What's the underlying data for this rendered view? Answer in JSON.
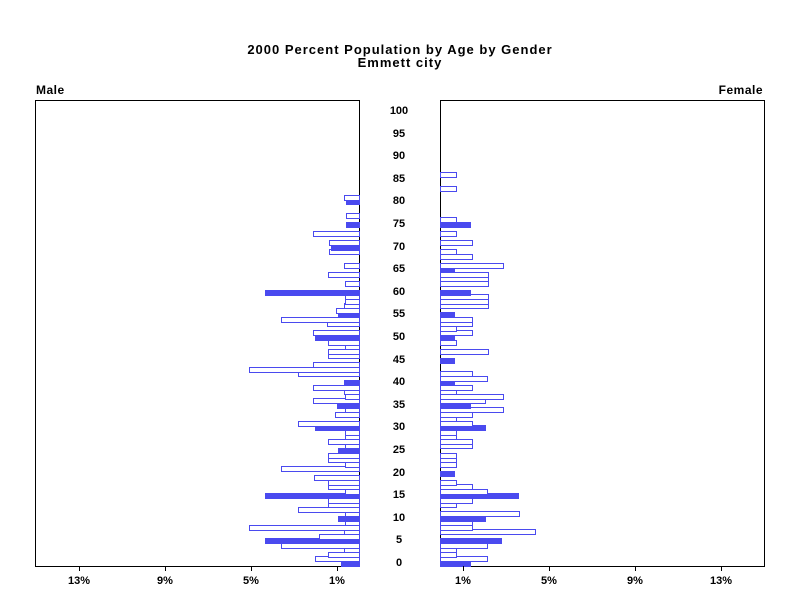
{
  "chart_data": {
    "type": "bar",
    "variant": "population-pyramid",
    "title": "2000 Percent Population by Age by Gender",
    "subtitle": "Emmett city",
    "left_panel_label": "Male",
    "right_panel_label": "Female",
    "xlabel": "",
    "ylabel": "",
    "age_axis": {
      "min": 0,
      "max": 100,
      "tick_interval": 5,
      "tick_labels": [
        "0",
        "5",
        "10",
        "15",
        "20",
        "25",
        "30",
        "35",
        "40",
        "45",
        "50",
        "55",
        "60",
        "65",
        "70",
        "75",
        "80",
        "85",
        "90",
        "95",
        "100"
      ]
    },
    "pct_axis": {
      "min": 0,
      "max": 15,
      "ticks": [
        1,
        5,
        9,
        13
      ],
      "tick_labels": [
        "1%",
        "5%",
        "9%",
        "13%"
      ],
      "male_axis_reversed": true
    },
    "legend": "solid bars at ages that are multiples of 5; outlined bars at other single years of age",
    "colors": {
      "bar_blue": "#4a4aef",
      "outline_fill": "#ffffff",
      "frame": "#000000",
      "text": "#000000"
    },
    "grid": false,
    "categories_note": "index = single year of age, 0 through 100",
    "series": [
      {
        "name": "Male",
        "values": [
          0.9,
          2.0,
          1.4,
          0.65,
          3.6,
          4.4,
          1.8,
          0.65,
          5.05,
          0.6,
          1.0,
          0.6,
          2.8,
          1.4,
          1.4,
          4.4,
          0.6,
          1.4,
          1.4,
          2.05,
          0,
          3.6,
          0.6,
          1.4,
          1.4,
          1.0,
          0.6,
          1.4,
          0.6,
          0.6,
          2.1,
          2.8,
          0,
          1.05,
          0.6,
          1.05,
          2.1,
          0.6,
          0.65,
          2.1,
          0.75,
          0,
          2.8,
          5.05,
          2.1,
          0,
          1.4,
          1.4,
          0.6,
          1.4,
          2.1,
          2.1,
          0,
          1.45,
          3.6,
          1.0,
          1.0,
          0.65,
          0.6,
          0.6,
          4.4,
          0,
          0.6,
          0,
          1.4,
          0,
          0.65,
          0,
          0,
          1.35,
          1.35,
          1.35,
          0,
          2.1,
          0,
          0.65,
          0,
          0.55,
          0,
          0,
          0.65,
          0.65,
          0,
          0,
          0,
          0,
          0,
          0,
          0,
          0,
          0,
          0,
          0,
          0,
          0,
          0,
          0,
          0,
          0,
          0,
          0
        ]
      },
      {
        "name": "Female",
        "values": [
          1.43,
          2.15,
          0.7,
          0.7,
          2.15,
          2.9,
          0,
          4.36,
          1.44,
          1.44,
          2.15,
          3.62,
          0,
          0.7,
          1.44,
          3.67,
          2.15,
          1.44,
          0.7,
          0,
          0.7,
          0,
          0.7,
          0.7,
          0.7,
          0,
          1.44,
          1.44,
          0.7,
          0.7,
          2.15,
          1.44,
          0.7,
          1.44,
          2.87,
          1.44,
          2.06,
          2.87,
          0.7,
          1.44,
          0.7,
          2.13,
          1.44,
          0,
          0,
          0.7,
          0,
          2.18,
          0,
          0.7,
          0.7,
          1.44,
          0.7,
          1.44,
          1.44,
          0.7,
          0,
          2.18,
          2.18,
          2.18,
          1.44,
          0,
          2.18,
          2.18,
          2.18,
          0.7,
          2.87,
          0,
          1.44,
          0.7,
          0,
          1.44,
          0,
          0.7,
          0,
          1.45,
          0.7,
          0,
          0,
          0,
          0,
          0,
          0,
          0.7,
          0,
          0,
          0.7,
          0,
          0,
          0,
          0,
          0,
          0,
          0,
          0,
          0,
          0,
          0,
          0,
          0,
          0
        ]
      }
    ]
  }
}
